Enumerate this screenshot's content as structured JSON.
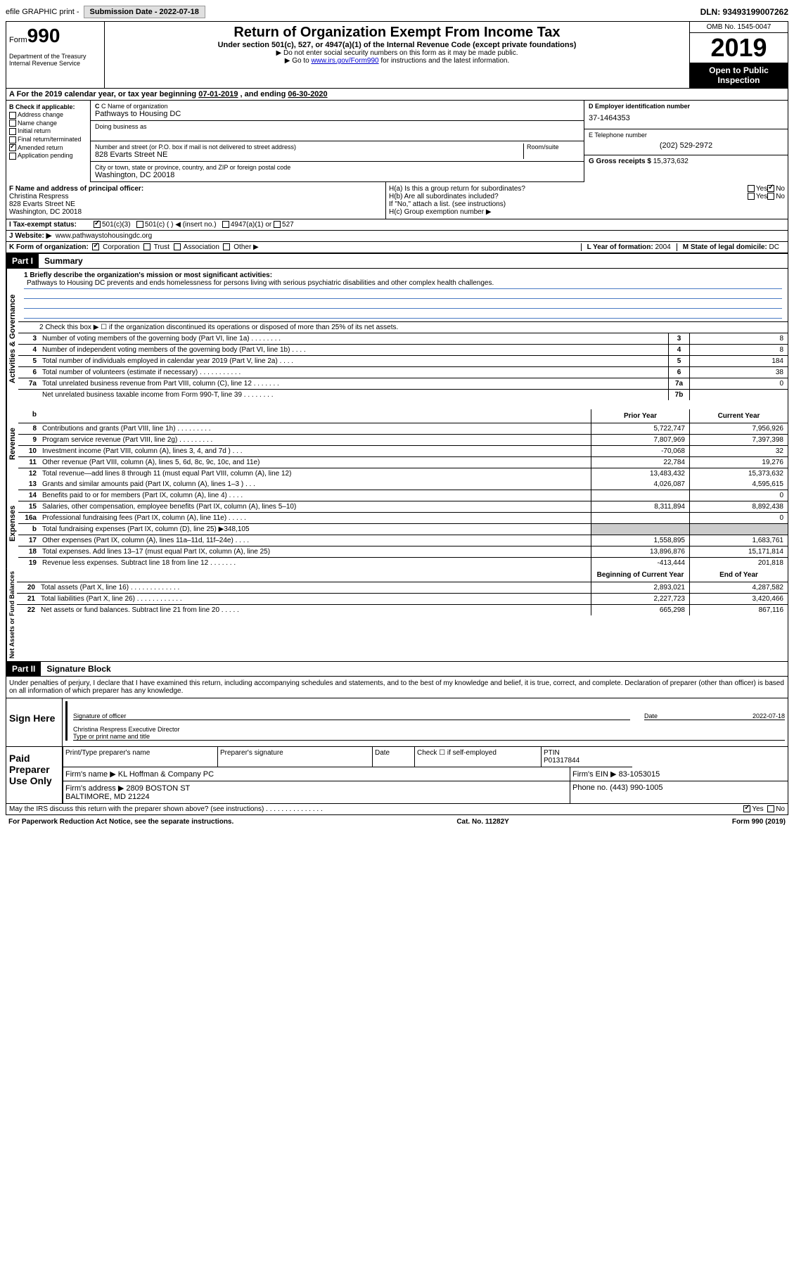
{
  "top": {
    "efile": "efile GRAPHIC print -",
    "submission": "Submission Date - 2022-07-18",
    "dln": "DLN: 93493199007262"
  },
  "header": {
    "form_word": "Form",
    "form_num": "990",
    "title": "Return of Organization Exempt From Income Tax",
    "subtitle": "Under section 501(c), 527, or 4947(a)(1) of the Internal Revenue Code (except private foundations)",
    "instr1": "▶ Do not enter social security numbers on this form as it may be made public.",
    "instr2_pre": "▶ Go to ",
    "instr2_link": "www.irs.gov/Form990",
    "instr2_post": " for instructions and the latest information.",
    "dept": "Department of the Treasury\nInternal Revenue Service",
    "omb": "OMB No. 1545-0047",
    "year": "2019",
    "open": "Open to Public Inspection"
  },
  "period": {
    "text_a": "A For the 2019 calendar year, or tax year beginning ",
    "begin": "07-01-2019",
    "text_b": " , and ending ",
    "end": "06-30-2020"
  },
  "boxB": {
    "label": "B Check if applicable:",
    "items": [
      "Address change",
      "Name change",
      "Initial return",
      "Final return/terminated",
      "Amended return",
      "Application pending"
    ],
    "checked_idx": 4
  },
  "boxC": {
    "name_label": "C Name of organization",
    "name": "Pathways to Housing DC",
    "dba_label": "Doing business as",
    "addr_label": "Number and street (or P.O. box if mail is not delivered to street address)",
    "room_label": "Room/suite",
    "addr": "828 Evarts Street NE",
    "city_label": "City or town, state or province, country, and ZIP or foreign postal code",
    "city": "Washington, DC  20018"
  },
  "boxD": {
    "label": "D Employer identification number",
    "val": "37-1464353"
  },
  "boxE": {
    "label": "E Telephone number",
    "val": "(202) 529-2972"
  },
  "boxG": {
    "label": "G Gross receipts $",
    "val": "15,373,632"
  },
  "boxF": {
    "label": "F Name and address of principal officer:",
    "name": "Christina Respress",
    "addr1": "828 Evarts Street NE",
    "addr2": "Washington, DC  20018"
  },
  "boxH": {
    "a": "H(a)  Is this a group return for subordinates?",
    "b": "H(b)  Are all subordinates included?",
    "note": "If \"No,\" attach a list. (see instructions)",
    "c": "H(c)  Group exemption number ▶",
    "yes": "Yes",
    "no": "No"
  },
  "boxI": {
    "label": "I Tax-exempt status:",
    "opts": [
      "501(c)(3)",
      "501(c) (  ) ◀ (insert no.)",
      "4947(a)(1) or",
      "527"
    ]
  },
  "boxJ": {
    "label": "J Website: ▶",
    "val": "www.pathwaystohousingdc.org"
  },
  "boxK": {
    "label": "K Form of organization:",
    "opts": [
      "Corporation",
      "Trust",
      "Association",
      "Other ▶"
    ]
  },
  "boxL": {
    "label": "L Year of formation:",
    "val": "2004"
  },
  "boxM": {
    "label": "M State of legal domicile:",
    "val": "DC"
  },
  "part1": {
    "hdr": "Part I",
    "title": "Summary",
    "line1_label": "1  Briefly describe the organization's mission or most significant activities:",
    "mission": "Pathways to Housing DC prevents and ends homelessness for persons living with serious psychiatric disabilities and other complex health challenges.",
    "line2": "2   Check this box ▶ ☐  if the organization discontinued its operations or disposed of more than 25% of its net assets.",
    "gov_label": "Activities & Governance",
    "rev_label": "Revenue",
    "exp_label": "Expenses",
    "net_label": "Net Assets or Fund Balances",
    "prior_hdr": "Prior Year",
    "curr_hdr": "Current Year",
    "begin_hdr": "Beginning of Current Year",
    "end_hdr": "End of Year",
    "gov_lines": [
      {
        "n": "3",
        "d": "Number of voting members of the governing body (Part VI, line 1a)  .  .  .  .  .  .  .  .",
        "b": "3",
        "v": "8"
      },
      {
        "n": "4",
        "d": "Number of independent voting members of the governing body (Part VI, line 1b)  .  .  .  .",
        "b": "4",
        "v": "8"
      },
      {
        "n": "5",
        "d": "Total number of individuals employed in calendar year 2019 (Part V, line 2a)  .  .  .  .",
        "b": "5",
        "v": "184"
      },
      {
        "n": "6",
        "d": "Total number of volunteers (estimate if necessary)  .  .  .  .  .  .  .  .  .  .  .",
        "b": "6",
        "v": "38"
      },
      {
        "n": "7a",
        "d": "Total unrelated business revenue from Part VIII, column (C), line 12  .  .  .  .  .  .  .",
        "b": "7a",
        "v": "0"
      },
      {
        "n": "",
        "d": "Net unrelated business taxable income from Form 990-T, line 39  .  .  .  .  .  .  .  .",
        "b": "7b",
        "v": ""
      }
    ],
    "rev_lines": [
      {
        "n": "8",
        "d": "Contributions and grants (Part VIII, line 1h)  .  .  .  .  .  .  .  .  .",
        "p": "5,722,747",
        "c": "7,956,926"
      },
      {
        "n": "9",
        "d": "Program service revenue (Part VIII, line 2g)  .  .  .  .  .  .  .  .  .",
        "p": "7,807,969",
        "c": "7,397,398"
      },
      {
        "n": "10",
        "d": "Investment income (Part VIII, column (A), lines 3, 4, and 7d )  .  .  .",
        "p": "-70,068",
        "c": "32"
      },
      {
        "n": "11",
        "d": "Other revenue (Part VIII, column (A), lines 5, 6d, 8c, 9c, 10c, and 11e)",
        "p": "22,784",
        "c": "19,276"
      },
      {
        "n": "12",
        "d": "Total revenue—add lines 8 through 11 (must equal Part VIII, column (A), line 12)",
        "p": "13,483,432",
        "c": "15,373,632"
      }
    ],
    "exp_lines": [
      {
        "n": "13",
        "d": "Grants and similar amounts paid (Part IX, column (A), lines 1–3 )  .  .  .",
        "p": "4,026,087",
        "c": "4,595,615"
      },
      {
        "n": "14",
        "d": "Benefits paid to or for members (Part IX, column (A), line 4)  .  .  .  .",
        "p": "",
        "c": "0"
      },
      {
        "n": "15",
        "d": "Salaries, other compensation, employee benefits (Part IX, column (A), lines 5–10)",
        "p": "8,311,894",
        "c": "8,892,438"
      },
      {
        "n": "16a",
        "d": "Professional fundraising fees (Part IX, column (A), line 11e)  .  .  .  .  .",
        "p": "",
        "c": "0"
      },
      {
        "n": "b",
        "d": "Total fundraising expenses (Part IX, column (D), line 25) ▶348,105",
        "p": "shade",
        "c": "shade"
      },
      {
        "n": "17",
        "d": "Other expenses (Part IX, column (A), lines 11a–11d, 11f–24e)  .  .  .  .",
        "p": "1,558,895",
        "c": "1,683,761"
      },
      {
        "n": "18",
        "d": "Total expenses. Add lines 13–17 (must equal Part IX, column (A), line 25)",
        "p": "13,896,876",
        "c": "15,171,814"
      },
      {
        "n": "19",
        "d": "Revenue less expenses. Subtract line 18 from line 12  .  .  .  .  .  .  .",
        "p": "-413,444",
        "c": "201,818"
      }
    ],
    "net_lines": [
      {
        "n": "20",
        "d": "Total assets (Part X, line 16)  .  .  .  .  .  .  .  .  .  .  .  .  .",
        "p": "2,893,021",
        "c": "4,287,582"
      },
      {
        "n": "21",
        "d": "Total liabilities (Part X, line 26)  .  .  .  .  .  .  .  .  .  .  .  .",
        "p": "2,227,723",
        "c": "3,420,466"
      },
      {
        "n": "22",
        "d": "Net assets or fund balances. Subtract line 21 from line 20  .  .  .  .  .",
        "p": "665,298",
        "c": "867,116"
      }
    ]
  },
  "part2": {
    "hdr": "Part II",
    "title": "Signature Block",
    "decl": "Under penalties of perjury, I declare that I have examined this return, including accompanying schedules and statements, and to the best of my knowledge and belief, it is true, correct, and complete. Declaration of preparer (other than officer) is based on all information of which preparer has any knowledge.",
    "sign_here": "Sign Here",
    "sig_officer": "Signature of officer",
    "sig_date": "2022-07-18",
    "date_label": "Date",
    "officer_name": "Christina Respress  Executive Director",
    "type_label": "Type or print name and title",
    "paid_label": "Paid Preparer Use Only",
    "prep_name_label": "Print/Type preparer's name",
    "prep_sig_label": "Preparer's signature",
    "check_label": "Check ☐ if self-employed",
    "ptin_label": "PTIN",
    "ptin": "P01317844",
    "firm_name_label": "Firm's name   ▶",
    "firm_name": "KL Hoffman & Company PC",
    "firm_ein_label": "Firm's EIN ▶",
    "firm_ein": "83-1053015",
    "firm_addr_label": "Firm's address ▶",
    "firm_addr": "2809 BOSTON ST\nBALTIMORE, MD  21224",
    "phone_label": "Phone no.",
    "phone": "(443) 990-1005",
    "discuss": "May the IRS discuss this return with the preparer shown above? (see instructions)  .  .  .  .  .  .  .  .  .  .  .  .  .  .  .",
    "yes": "Yes",
    "no": "No"
  },
  "footer": {
    "left": "For Paperwork Reduction Act Notice, see the separate instructions.",
    "mid": "Cat. No. 11282Y",
    "right": "Form 990 (2019)"
  }
}
